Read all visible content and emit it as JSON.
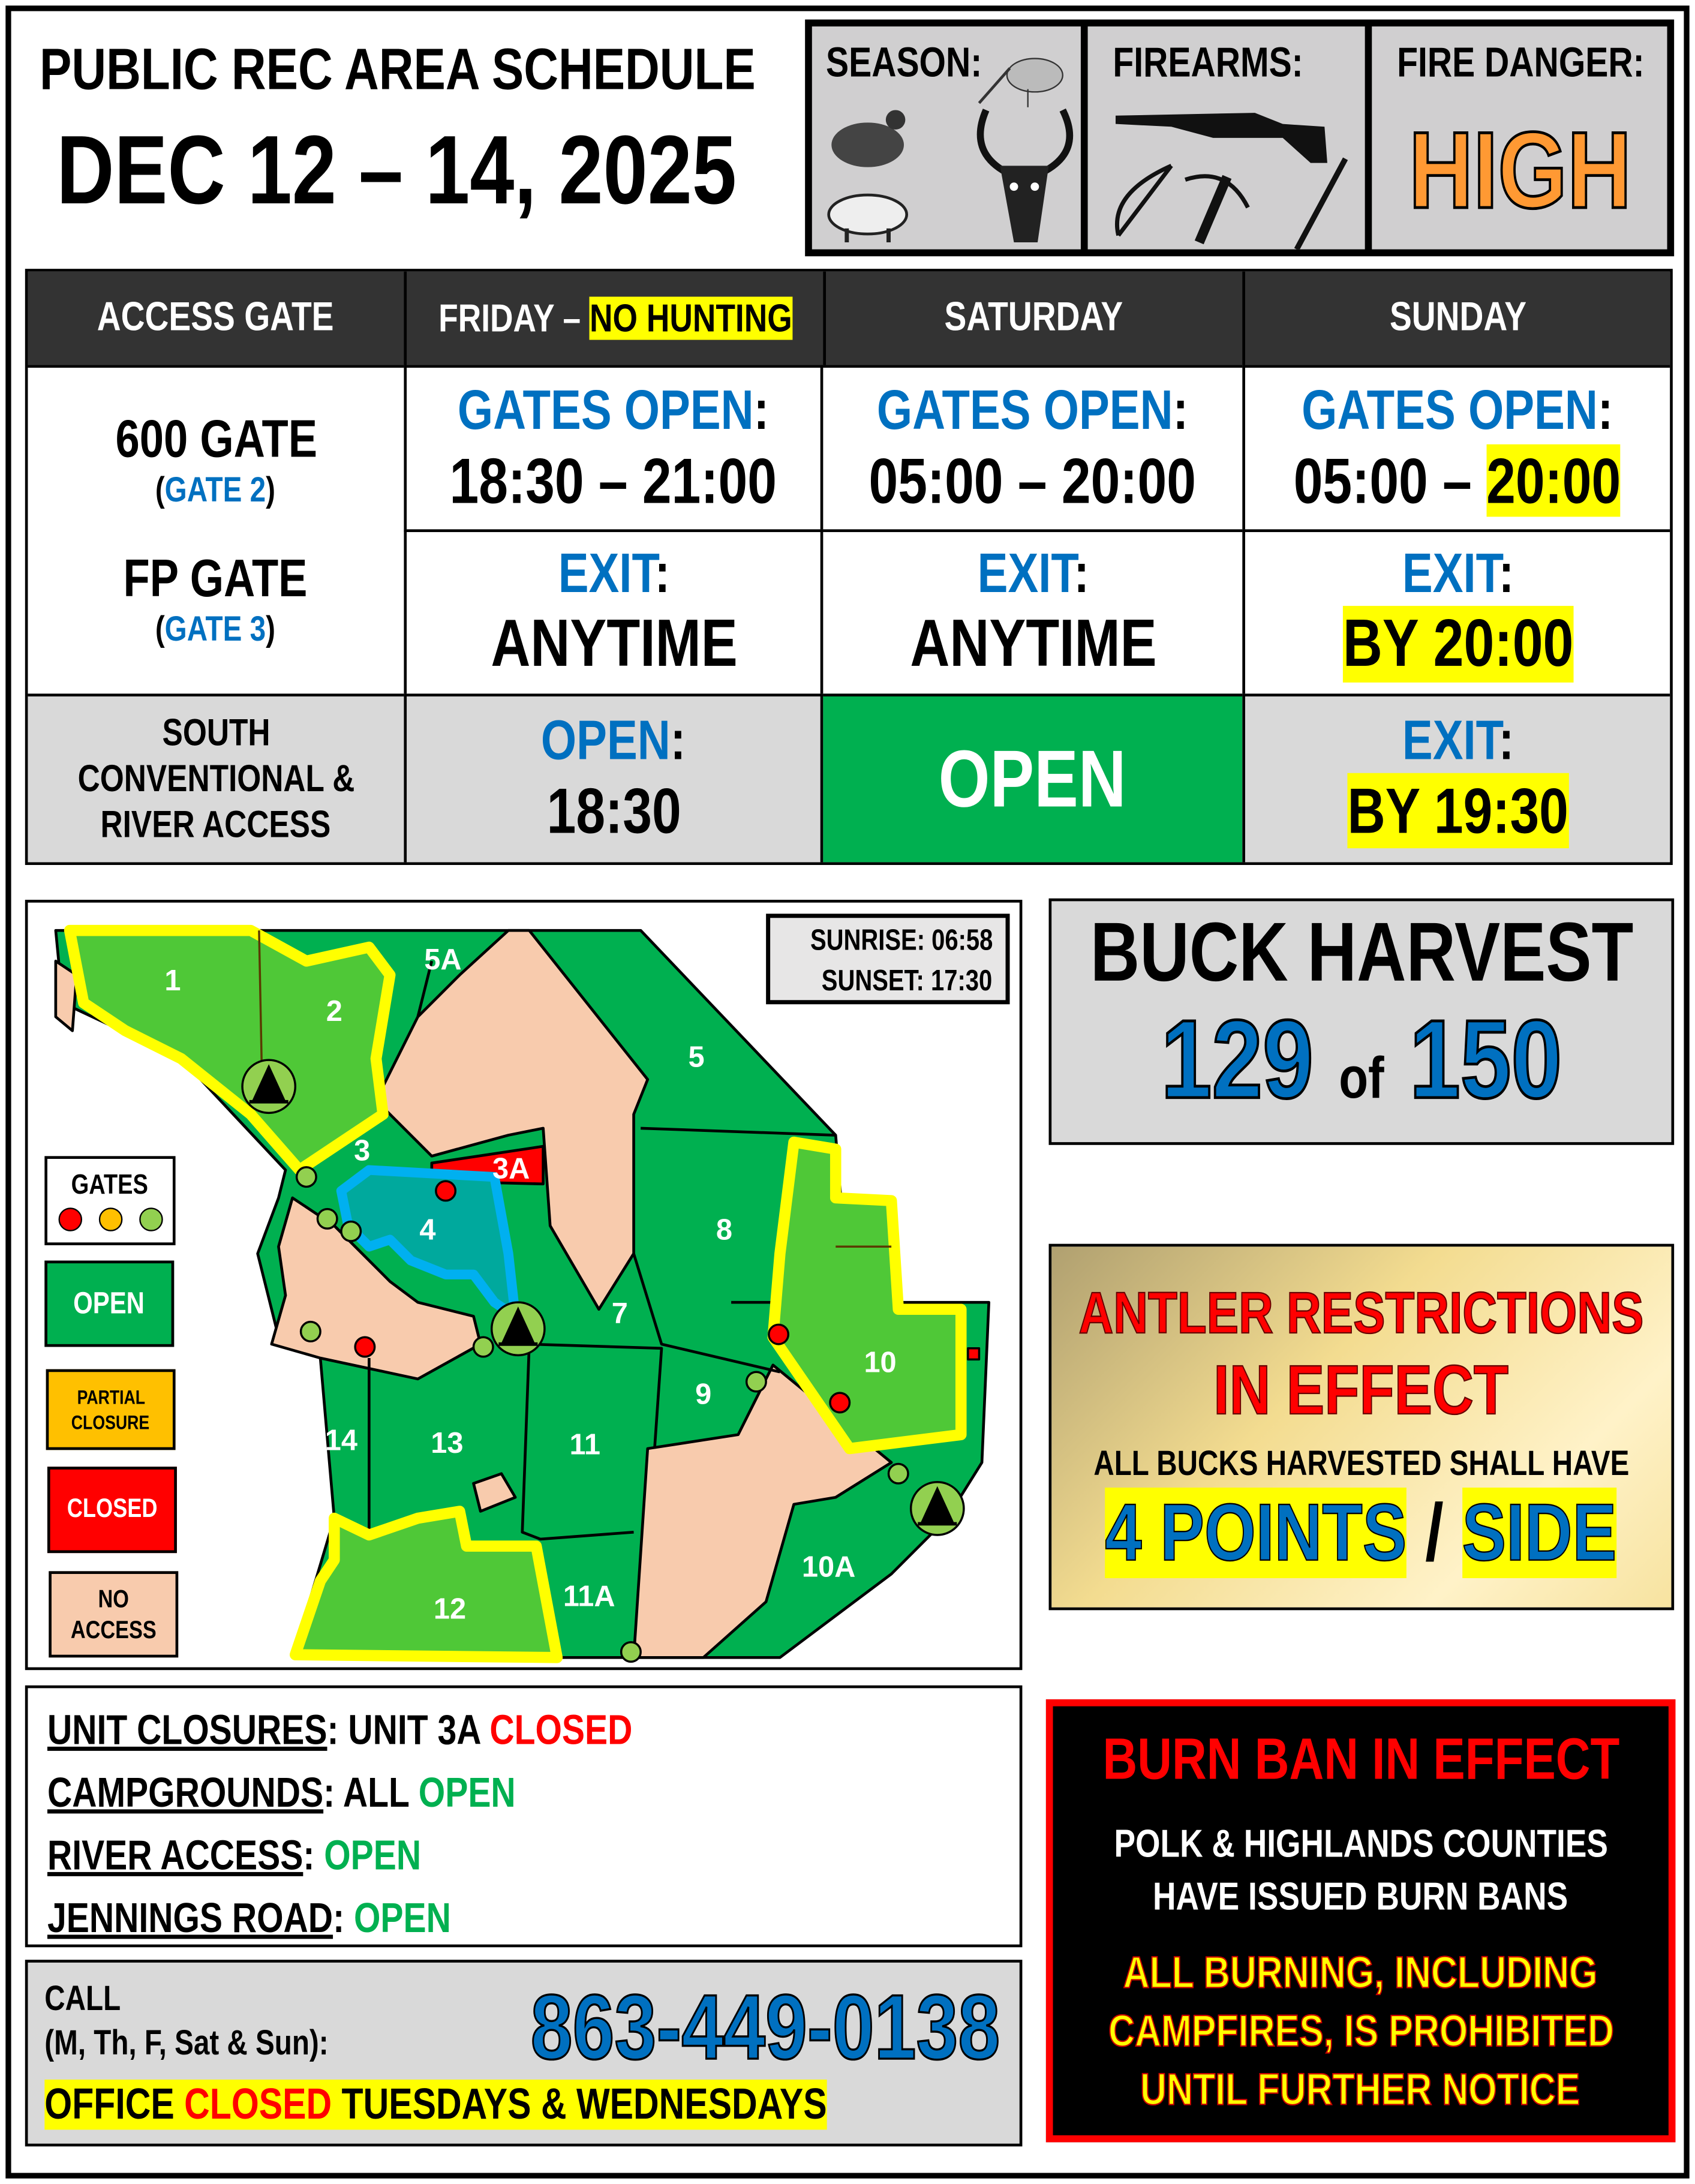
{
  "header": {
    "title": "PUBLIC REC AREA SCHEDULE",
    "dates": "DEC 12 – 14, 2025"
  },
  "status_panel": {
    "season_label": "SEASON:",
    "season_icons": [
      "woodcock-icon",
      "quail-icon",
      "hog-icon",
      "deer-icon"
    ],
    "firearms_label": "FIREARMS:",
    "firearms_icons": [
      "shotgun-icon",
      "compound-bow-icon",
      "crossbow-icon",
      "muzzleloader-icon"
    ],
    "fire_label": "FIRE DANGER:",
    "fire_level": "HIGH",
    "fire_color": "#ff9933"
  },
  "schedule": {
    "headers": {
      "gate": "ACCESS GATE",
      "friday": "FRIDAY – ",
      "friday_note": "NO HUNTING",
      "saturday": "SATURDAY",
      "sunday": "SUNDAY"
    },
    "gates": [
      {
        "name": "600 GATE",
        "sub": "GATE 2"
      },
      {
        "name": "FP GATE",
        "sub": "GATE 3"
      }
    ],
    "gates_open_label": "GATES OPEN",
    "exit_label": "EXIT",
    "open_label": "OPEN",
    "open_row": {
      "friday": "18:30 – 21:00",
      "saturday": "05:00 – 20:00",
      "sunday_start": "05:00 – ",
      "sunday_end": "20:00"
    },
    "exit_row": {
      "friday": "ANYTIME",
      "saturday": "ANYTIME",
      "sunday": "BY 20:00"
    },
    "south": {
      "name": [
        "SOUTH",
        "CONVENTIONAL &",
        "RIVER ACCESS"
      ],
      "friday": "18:30",
      "saturday": "OPEN",
      "sunday": "BY 19:30"
    }
  },
  "map": {
    "sunrise": "SUNRISE: 06:58",
    "sunset": "SUNSET: 17:30",
    "legend": {
      "gates": "GATES",
      "open": "OPEN",
      "partial": [
        "PARTIAL",
        "CLOSURE"
      ],
      "closed": "CLOSED",
      "no_access": [
        "NO",
        "ACCESS"
      ]
    },
    "colors": {
      "open": "#00b050",
      "partial": "#ffc000",
      "closed": "#ff0000",
      "no_access": "#f8cbad",
      "campground": "#92d050",
      "highlight": "#ffff00",
      "river": "#00b0f0"
    },
    "units": [
      "1",
      "2",
      "5A",
      "5",
      "3",
      "3A",
      "4",
      "8",
      "7",
      "10",
      "9",
      "14",
      "13",
      "11",
      "12",
      "11A",
      "10A"
    ]
  },
  "buck": {
    "title": "BUCK HARVEST",
    "count": "129",
    "of": "of",
    "quota": "150"
  },
  "antler": {
    "line1": "ANTLER RESTRICTIONS",
    "line2": "IN EFFECT",
    "line3": "ALL BUCKS HARVESTED SHALL HAVE",
    "points": "4 POINTS",
    "slash": "/",
    "side": "SIDE"
  },
  "closures": [
    {
      "label": "UNIT CLOSURES",
      "value": "UNIT 3A ",
      "status": "CLOSED",
      "color": "red"
    },
    {
      "label": "CAMPGROUNDS",
      "value": " ALL ",
      "status": "OPEN",
      "color": "green"
    },
    {
      "label": "RIVER ACCESS",
      "value": " ",
      "status": "OPEN",
      "color": "green"
    },
    {
      "label": "JENNINGS ROAD",
      "value": " ",
      "status": "OPEN",
      "color": "green"
    }
  ],
  "call": {
    "label": "CALL",
    "days": "(M, Th, F, Sat & Sun):",
    "phone": "863-449-0138",
    "office1": "OFFICE ",
    "office_closed": "CLOSED",
    "office2": " TUESDAYS & WEDNESDAYS"
  },
  "burn": {
    "title": "BURN BAN IN EFFECT",
    "line1": "POLK & HIGHLANDS COUNTIES",
    "line2": "HAVE ISSUED BURN BANS",
    "warn1": "ALL BURNING, INCLUDING",
    "warn2a": "CAMPFIRES, IS ",
    "warn2b": "PROHIBITED",
    "warn3": "UNTIL FURTHER NOTICE"
  }
}
